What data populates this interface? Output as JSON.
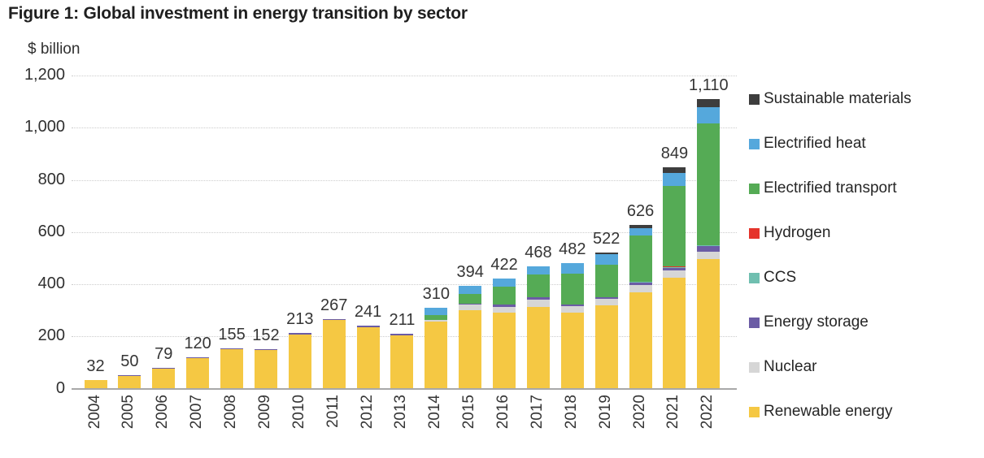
{
  "figure": {
    "title": "Figure 1: Global investment in energy transition by sector",
    "y_axis_unit": "$ billion"
  },
  "chart_data": {
    "type": "bar",
    "stacked": true,
    "title": "Figure 1: Global investment in energy transition by sector",
    "xlabel": "",
    "ylabel": "$ billion",
    "ylim": [
      0,
      1200
    ],
    "grid": "horizontal-dotted",
    "legend_position": "right",
    "y_ticks": [
      {
        "value": 0,
        "label": "0"
      },
      {
        "value": 200,
        "label": "200"
      },
      {
        "value": 400,
        "label": "400"
      },
      {
        "value": 600,
        "label": "600"
      },
      {
        "value": 800,
        "label": "800"
      },
      {
        "value": 1000,
        "label": "1,000"
      },
      {
        "value": 1200,
        "label": "1,200"
      }
    ],
    "categories": [
      "2004",
      "2005",
      "2006",
      "2007",
      "2008",
      "2009",
      "2010",
      "2011",
      "2012",
      "2013",
      "2014",
      "2015",
      "2016",
      "2017",
      "2018",
      "2019",
      "2020",
      "2021",
      "2022"
    ],
    "totals": [
      32,
      50,
      79,
      120,
      155,
      152,
      213,
      267,
      241,
      211,
      310,
      394,
      422,
      468,
      482,
      522,
      626,
      849,
      1110
    ],
    "total_labels": [
      "32",
      "50",
      "79",
      "120",
      "155",
      "152",
      "213",
      "267",
      "241",
      "211",
      "310",
      "394",
      "422",
      "468",
      "482",
      "522",
      "626",
      "849",
      "1,110"
    ],
    "series": [
      {
        "name": "Renewable energy",
        "color": "#F5C843",
        "values": [
          32,
          48,
          76,
          116,
          151,
          148,
          208,
          262,
          236,
          205,
          258,
          300,
          292,
          313,
          292,
          318,
          370,
          425,
          495
        ]
      },
      {
        "name": "Nuclear",
        "color": "#D6D6D6",
        "values": [
          0,
          0,
          0,
          0,
          0,
          0,
          0,
          0,
          0,
          0,
          4,
          21,
          21,
          29,
          23,
          25,
          27,
          28,
          30
        ]
      },
      {
        "name": "Energy storage",
        "color": "#6B5CA5",
        "values": [
          0,
          2,
          3,
          4,
          4,
          4,
          5,
          5,
          5,
          6,
          2,
          3,
          8,
          8,
          8,
          6,
          10,
          10,
          20
        ]
      },
      {
        "name": "CCS",
        "color": "#70BFB0",
        "values": [
          0,
          0,
          0,
          0,
          0,
          0,
          0,
          0,
          0,
          0,
          0,
          0,
          0,
          0,
          0,
          0,
          1,
          2,
          3
        ]
      },
      {
        "name": "Hydrogen",
        "color": "#E5342B",
        "values": [
          0,
          0,
          0,
          0,
          0,
          0,
          0,
          0,
          0,
          0,
          0,
          0,
          0,
          0,
          0,
          0,
          1,
          2,
          2
        ]
      },
      {
        "name": "Electrified transport",
        "color": "#55AB55",
        "values": [
          0,
          0,
          0,
          0,
          0,
          0,
          0,
          0,
          0,
          0,
          19,
          40,
          70,
          87,
          119,
          127,
          177,
          310,
          466
        ]
      },
      {
        "name": "Electrified heat",
        "color": "#55A8DC",
        "values": [
          0,
          0,
          0,
          0,
          0,
          0,
          0,
          0,
          0,
          0,
          27,
          30,
          31,
          31,
          40,
          38,
          30,
          50,
          62
        ]
      },
      {
        "name": "Sustainable materials",
        "color": "#3D3D3D",
        "values": [
          0,
          0,
          0,
          0,
          0,
          0,
          0,
          0,
          0,
          0,
          0,
          0,
          0,
          0,
          0,
          8,
          10,
          22,
          32
        ]
      }
    ],
    "legend": [
      {
        "label": "Sustainable materials",
        "color": "#3D3D3D"
      },
      {
        "label": "Electrified heat",
        "color": "#55A8DC"
      },
      {
        "label": "Electrified transport",
        "color": "#55AB55"
      },
      {
        "label": "Hydrogen",
        "color": "#E5342B"
      },
      {
        "label": "CCS",
        "color": "#70BFB0"
      },
      {
        "label": "Energy storage",
        "color": "#6B5CA5"
      },
      {
        "label": "Nuclear",
        "color": "#D6D6D6"
      },
      {
        "label": "Renewable energy",
        "color": "#F5C843"
      }
    ]
  }
}
